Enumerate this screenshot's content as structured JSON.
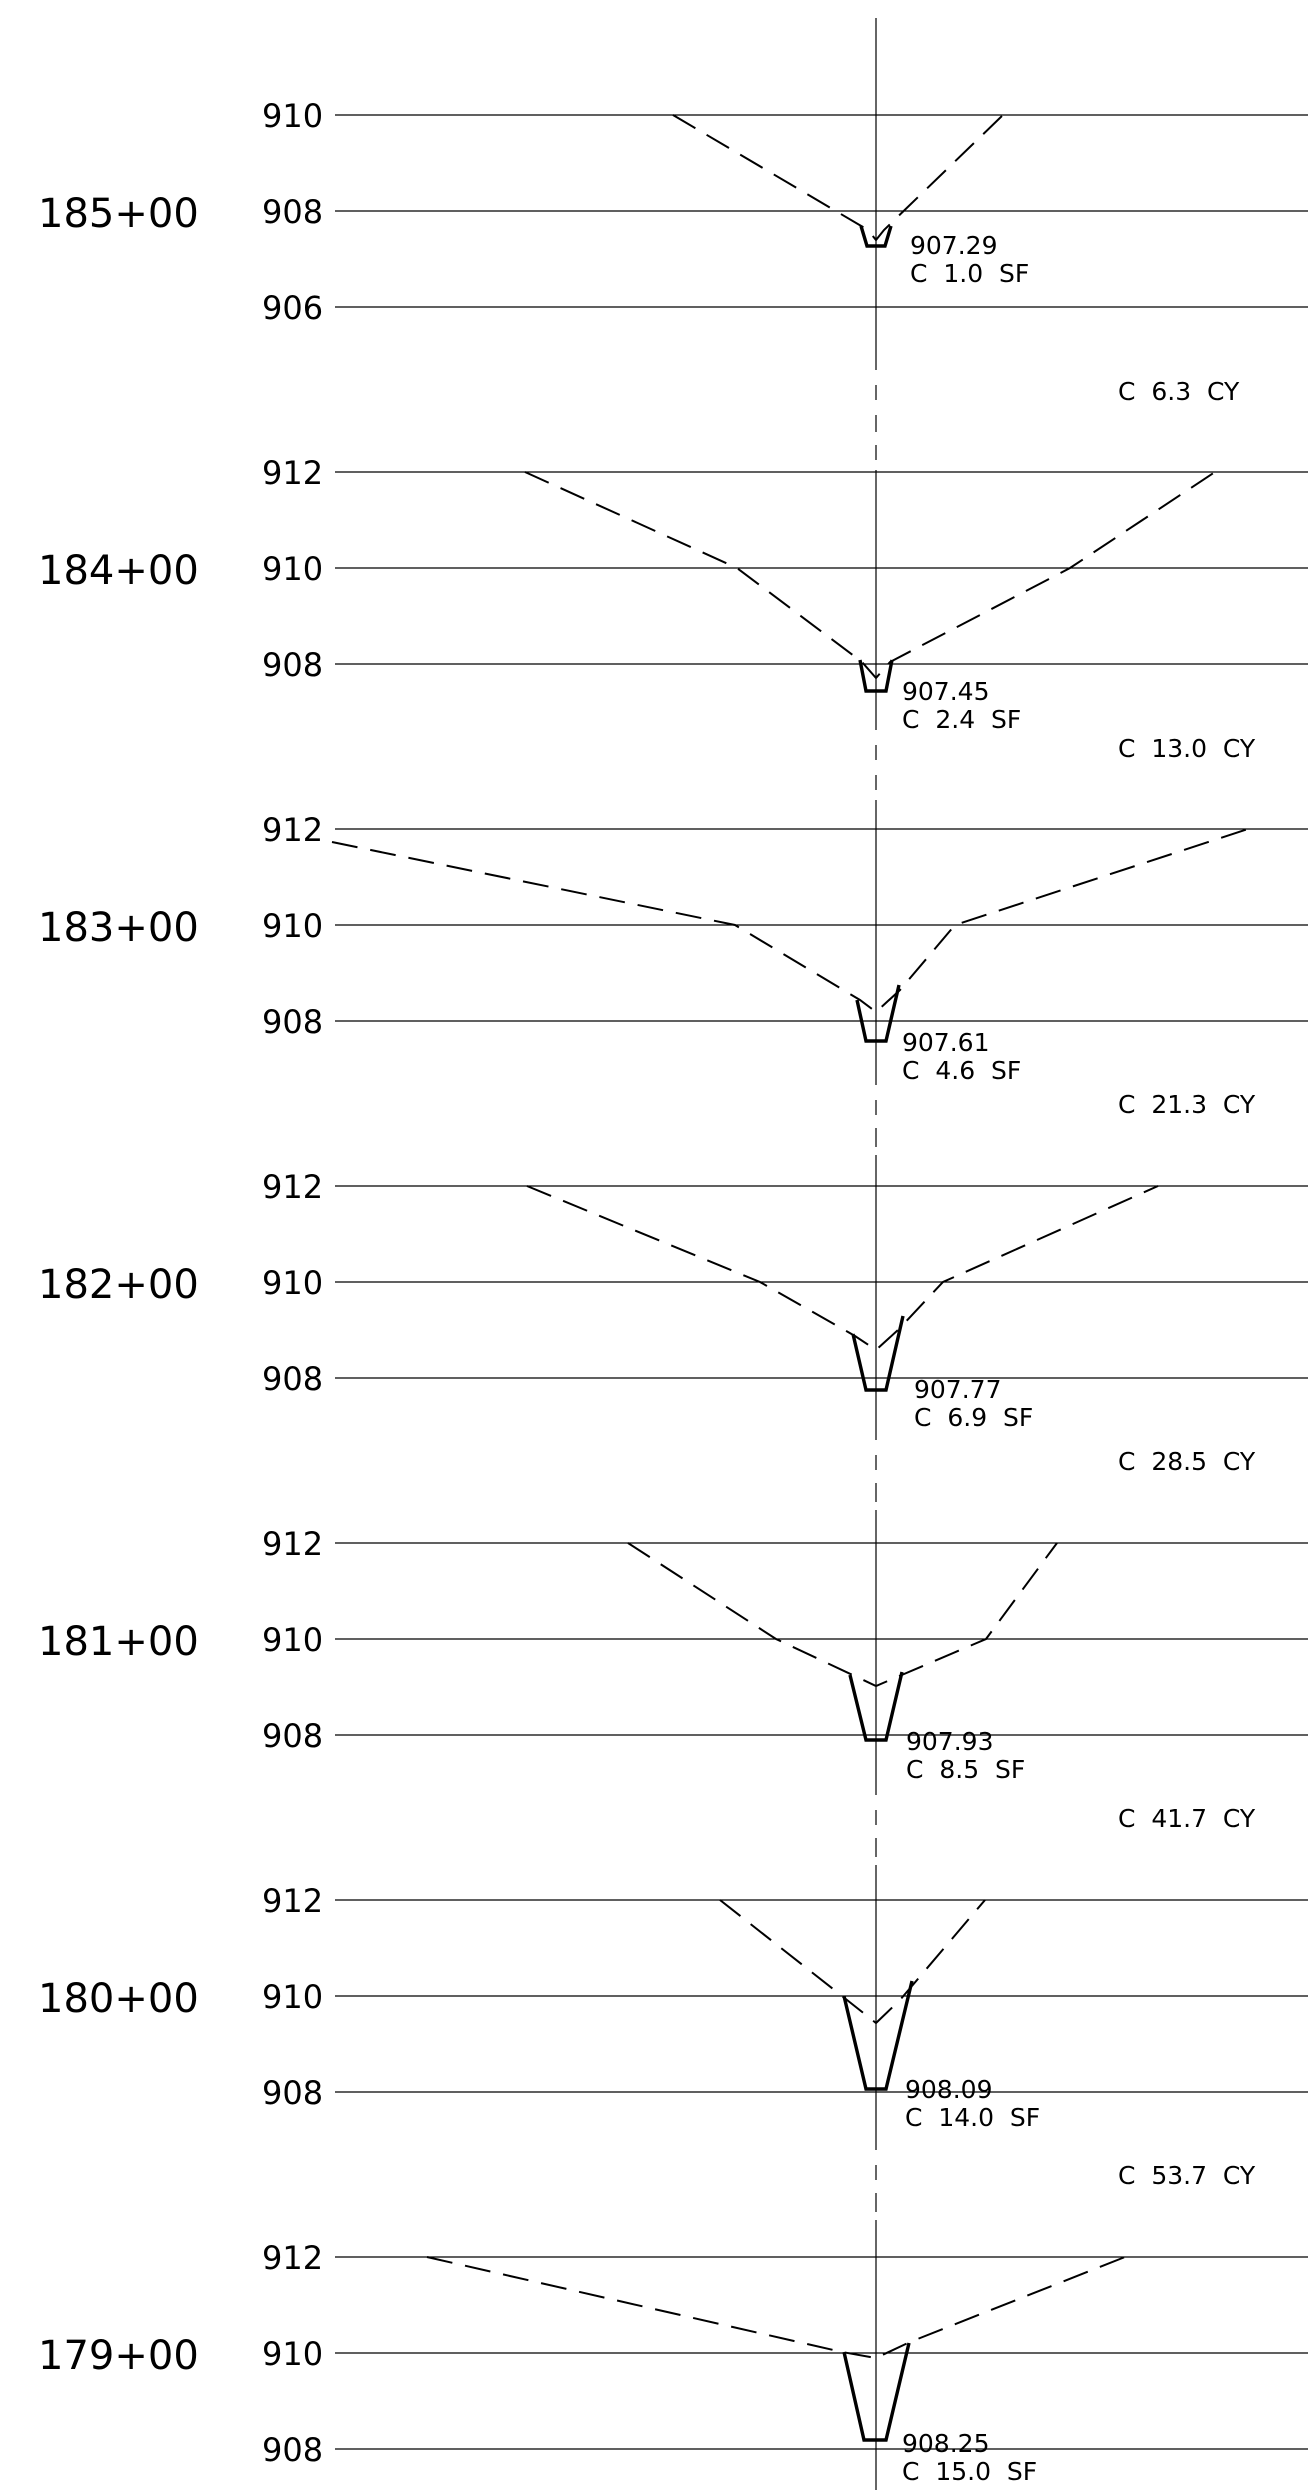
{
  "sections": [
    {
      "station": "185+00",
      "elevations": [
        "910",
        "908",
        "906"
      ],
      "invert": "907.29",
      "area": "C  1.0  SF",
      "volume": "C  6.3  CY"
    },
    {
      "station": "184+00",
      "elevations": [
        "912",
        "910",
        "908"
      ],
      "invert": "907.45",
      "area": "C  2.4  SF",
      "volume": "C  13.0  CY"
    },
    {
      "station": "183+00",
      "elevations": [
        "912",
        "910",
        "908"
      ],
      "invert": "907.61",
      "area": "C  4.6  SF",
      "volume": "C  21.3  CY"
    },
    {
      "station": "182+00",
      "elevations": [
        "912",
        "910",
        "908"
      ],
      "invert": "907.77",
      "area": "C  6.9  SF",
      "volume": "C  28.5  CY"
    },
    {
      "station": "181+00",
      "elevations": [
        "912",
        "910",
        "908"
      ],
      "invert": "907.93",
      "area": "C  8.5  SF",
      "volume": "C  41.7  CY"
    },
    {
      "station": "180+00",
      "elevations": [
        "912",
        "910",
        "908"
      ],
      "invert": "908.09",
      "area": "C  14.0  SF",
      "volume": "C  53.7  CY"
    },
    {
      "station": "179+00",
      "elevations": [
        "912",
        "910",
        "908"
      ],
      "invert": "908.25",
      "area": "C  15.0  SF"
    }
  ]
}
